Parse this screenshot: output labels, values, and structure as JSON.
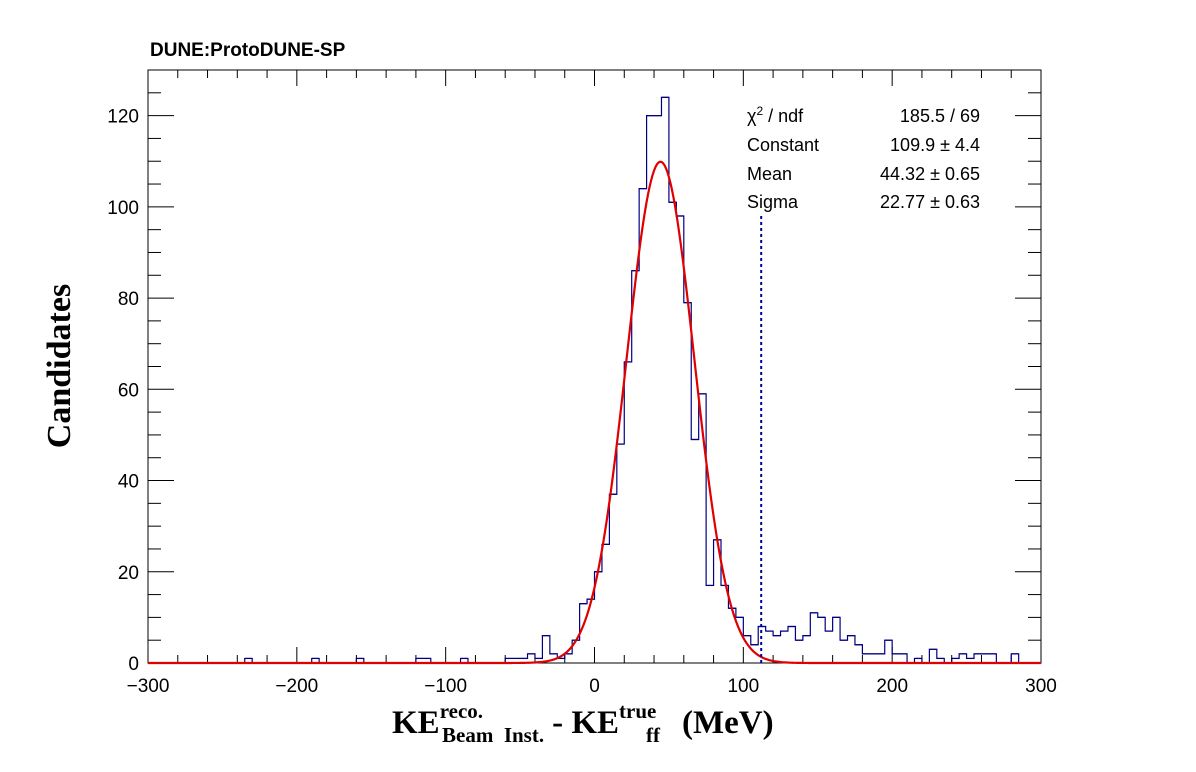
{
  "chart_data": {
    "type": "histogram",
    "title": "DUNE:ProtoDUNE-SP",
    "xlabel": {
      "base": "KE",
      "sup1": "reco.",
      "sub1": "Beam  Inst.",
      "minus": "- KE",
      "sup2": "true",
      "sub2": "ff",
      "unit": "(MeV)"
    },
    "ylabel": "Candidates",
    "xlim": [
      -300,
      300
    ],
    "ylim": [
      0,
      130
    ],
    "x_tick_labels": [
      "−300",
      "−200",
      "−100",
      "0",
      "100",
      "200",
      "300"
    ],
    "x_tick_values": [
      -300,
      -200,
      -100,
      0,
      100,
      200,
      300
    ],
    "y_tick_labels": [
      "0",
      "20",
      "40",
      "60",
      "80",
      "100",
      "120"
    ],
    "y_tick_values": [
      0,
      20,
      40,
      60,
      80,
      100,
      120
    ],
    "bin_width": 5,
    "histogram": [
      {
        "x": -235,
        "y": 1
      },
      {
        "x": -190,
        "y": 1
      },
      {
        "x": -160,
        "y": 1
      },
      {
        "x": -120,
        "y": 1
      },
      {
        "x": -115,
        "y": 1
      },
      {
        "x": -90,
        "y": 1
      },
      {
        "x": -60,
        "y": 1
      },
      {
        "x": -55,
        "y": 1
      },
      {
        "x": -50,
        "y": 1
      },
      {
        "x": -45,
        "y": 2
      },
      {
        "x": -40,
        "y": 1
      },
      {
        "x": -35,
        "y": 6
      },
      {
        "x": -30,
        "y": 2
      },
      {
        "x": -25,
        "y": 1
      },
      {
        "x": -20,
        "y": 2
      },
      {
        "x": -15,
        "y": 5
      },
      {
        "x": -10,
        "y": 13
      },
      {
        "x": -5,
        "y": 14
      },
      {
        "x": 0,
        "y": 20
      },
      {
        "x": 5,
        "y": 26
      },
      {
        "x": 10,
        "y": 37
      },
      {
        "x": 15,
        "y": 48
      },
      {
        "x": 20,
        "y": 66
      },
      {
        "x": 25,
        "y": 86
      },
      {
        "x": 30,
        "y": 104
      },
      {
        "x": 35,
        "y": 120
      },
      {
        "x": 40,
        "y": 120
      },
      {
        "x": 45,
        "y": 124
      },
      {
        "x": 50,
        "y": 101
      },
      {
        "x": 55,
        "y": 98
      },
      {
        "x": 60,
        "y": 79
      },
      {
        "x": 65,
        "y": 49
      },
      {
        "x": 70,
        "y": 59
      },
      {
        "x": 75,
        "y": 17
      },
      {
        "x": 80,
        "y": 27
      },
      {
        "x": 85,
        "y": 17
      },
      {
        "x": 90,
        "y": 12
      },
      {
        "x": 95,
        "y": 10
      },
      {
        "x": 100,
        "y": 6
      },
      {
        "x": 105,
        "y": 4
      },
      {
        "x": 110,
        "y": 8
      },
      {
        "x": 115,
        "y": 7
      },
      {
        "x": 120,
        "y": 6
      },
      {
        "x": 125,
        "y": 7
      },
      {
        "x": 130,
        "y": 8
      },
      {
        "x": 135,
        "y": 5
      },
      {
        "x": 140,
        "y": 6
      },
      {
        "x": 145,
        "y": 11
      },
      {
        "x": 150,
        "y": 10
      },
      {
        "x": 155,
        "y": 7
      },
      {
        "x": 160,
        "y": 10
      },
      {
        "x": 165,
        "y": 5
      },
      {
        "x": 170,
        "y": 6
      },
      {
        "x": 175,
        "y": 4
      },
      {
        "x": 180,
        "y": 2
      },
      {
        "x": 185,
        "y": 2
      },
      {
        "x": 190,
        "y": 2
      },
      {
        "x": 195,
        "y": 5
      },
      {
        "x": 200,
        "y": 2
      },
      {
        "x": 205,
        "y": 2
      },
      {
        "x": 215,
        "y": 1
      },
      {
        "x": 225,
        "y": 3
      },
      {
        "x": 230,
        "y": 1
      },
      {
        "x": 240,
        "y": 1
      },
      {
        "x": 245,
        "y": 2
      },
      {
        "x": 250,
        "y": 1
      },
      {
        "x": 255,
        "y": 2
      },
      {
        "x": 260,
        "y": 2
      },
      {
        "x": 265,
        "y": 2
      },
      {
        "x": 280,
        "y": 2
      }
    ],
    "fit": {
      "function": "gaus",
      "constant": 109.9,
      "mean": 44.32,
      "sigma": 22.77
    },
    "cut_line_x": 112,
    "stats_box": {
      "rows": [
        {
          "label_chi": "χ",
          "label_sup": "2",
          "label_rest": " / ndf",
          "value": "185.5 / 69"
        },
        {
          "label": "Constant",
          "value": "109.9 ± 4.4"
        },
        {
          "label": "Mean",
          "value": "44.32 ± 0.65"
        },
        {
          "label": "Sigma",
          "value": "22.77 ± 0.63"
        }
      ]
    },
    "colors": {
      "histogram": "#000080",
      "fit": "#e00000",
      "cut_line": "#0000a0",
      "axis": "#000000"
    }
  }
}
